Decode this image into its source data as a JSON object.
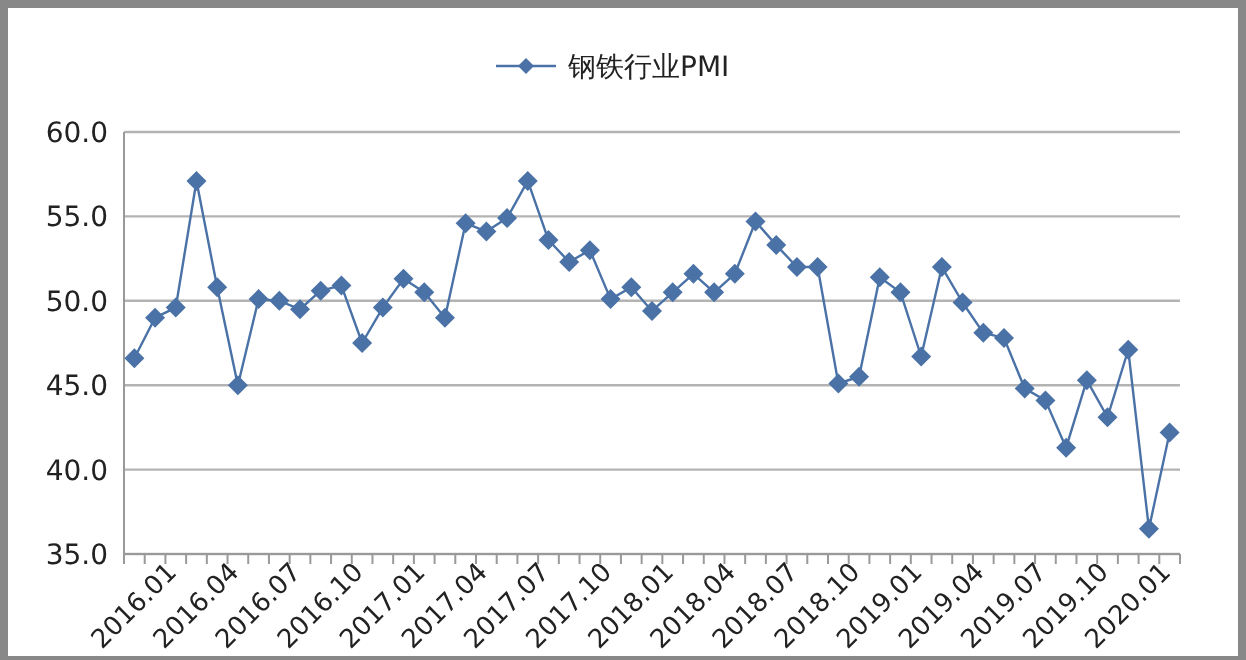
{
  "chart_data": {
    "type": "line",
    "categories": [
      "2016.01",
      null,
      null,
      "2016.04",
      null,
      null,
      "2016.07",
      null,
      null,
      "2016.10",
      null,
      null,
      "2017.01",
      null,
      null,
      "2017.04",
      null,
      null,
      "2017.07",
      null,
      null,
      "2017.10",
      null,
      null,
      "2018.01",
      null,
      null,
      "2018.04",
      null,
      null,
      "2018.07",
      null,
      null,
      "2018.10",
      null,
      null,
      "2019.01",
      null,
      null,
      "2019.04",
      null,
      null,
      "2019.07",
      null,
      null,
      "2019.10",
      null,
      null,
      "2020.01",
      null,
      null
    ],
    "series": [
      {
        "name": "钢铁行业PMI",
        "color": "#4a72a6",
        "values": [
          46.6,
          49.0,
          49.6,
          57.1,
          50.8,
          45.0,
          50.1,
          50.0,
          49.5,
          50.6,
          50.9,
          47.5,
          49.6,
          51.3,
          50.5,
          49.0,
          54.6,
          54.1,
          54.9,
          57.1,
          53.6,
          52.3,
          53.0,
          50.1,
          50.8,
          49.4,
          50.5,
          51.6,
          50.5,
          51.6,
          54.7,
          53.3,
          52.0,
          52.0,
          45.1,
          45.5,
          51.4,
          50.5,
          46.7,
          52.0,
          49.9,
          48.1,
          47.8,
          44.8,
          44.1,
          41.3,
          45.3,
          43.1,
          47.1,
          36.5,
          42.2
        ]
      }
    ],
    "ylim": [
      35,
      60
    ],
    "yticks": [
      {
        "value": 35,
        "label": "35.0"
      },
      {
        "value": 40,
        "label": "40.0"
      },
      {
        "value": 45,
        "label": "45.0"
      },
      {
        "value": 50,
        "label": "50.0"
      },
      {
        "value": 55,
        "label": "55.0"
      },
      {
        "value": 60,
        "label": "60.0"
      }
    ],
    "grid": "y",
    "legend": "top",
    "marker": "diamond",
    "line_style": "solid"
  }
}
